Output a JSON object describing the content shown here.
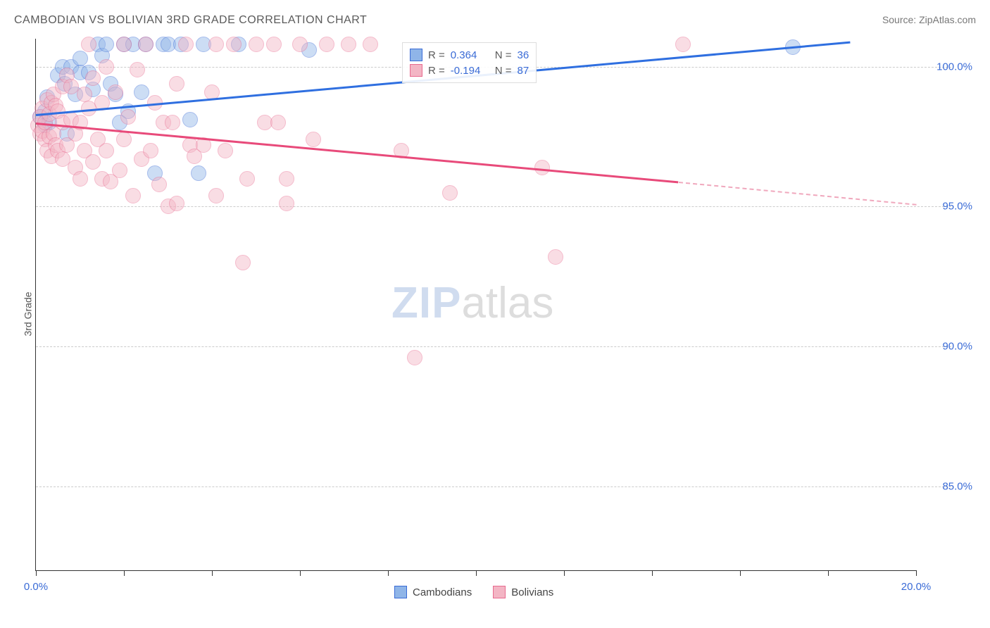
{
  "title": "CAMBODIAN VS BOLIVIAN 3RD GRADE CORRELATION CHART",
  "source": "Source: ZipAtlas.com",
  "ylabel": "3rd Grade",
  "watermark": {
    "zip": "ZIP",
    "atlas": "atlas"
  },
  "chart": {
    "type": "scatter",
    "xlim": [
      0.0,
      20.0
    ],
    "ylim": [
      82.0,
      101.0
    ],
    "ytick_values": [
      85.0,
      90.0,
      95.0,
      100.0
    ],
    "ytick_labels": [
      "85.0%",
      "90.0%",
      "95.0%",
      "100.0%"
    ],
    "xtick_values": [
      0,
      2,
      4,
      6,
      8,
      10,
      12,
      14,
      16,
      18,
      20
    ],
    "xtick_labels": {
      "0": "0.0%",
      "20": "20.0%"
    },
    "grid_color": "#cccccc",
    "background_color": "#ffffff",
    "point_radius": 10,
    "point_opacity": 0.45,
    "series": [
      {
        "name": "Cambodians",
        "color_fill": "#8fb5e8",
        "color_stroke": "#3a6bd6",
        "R": "0.364",
        "N": "36",
        "trend": {
          "x1": 0.0,
          "y1": 98.3,
          "x2": 18.5,
          "y2": 100.9,
          "color": "#2f6fe0"
        },
        "points": [
          [
            0.1,
            98.2
          ],
          [
            0.2,
            97.9
          ],
          [
            0.2,
            98.4
          ],
          [
            0.25,
            98.9
          ],
          [
            0.3,
            98.0
          ],
          [
            0.5,
            99.7
          ],
          [
            0.6,
            100.0
          ],
          [
            0.65,
            99.4
          ],
          [
            0.7,
            97.6
          ],
          [
            0.8,
            100.0
          ],
          [
            0.9,
            99.0
          ],
          [
            1.0,
            100.3
          ],
          [
            1.0,
            99.8
          ],
          [
            1.2,
            99.8
          ],
          [
            1.3,
            99.2
          ],
          [
            1.4,
            100.8
          ],
          [
            1.5,
            100.4
          ],
          [
            1.6,
            100.8
          ],
          [
            1.7,
            99.4
          ],
          [
            1.8,
            99.0
          ],
          [
            1.9,
            98.0
          ],
          [
            2.0,
            100.8
          ],
          [
            2.1,
            98.4
          ],
          [
            2.2,
            100.8
          ],
          [
            2.4,
            99.1
          ],
          [
            2.5,
            100.8
          ],
          [
            2.7,
            96.2
          ],
          [
            2.9,
            100.8
          ],
          [
            3.0,
            100.8
          ],
          [
            3.3,
            100.8
          ],
          [
            3.5,
            98.1
          ],
          [
            3.7,
            96.2
          ],
          [
            3.8,
            100.8
          ],
          [
            4.6,
            100.8
          ],
          [
            6.2,
            100.6
          ],
          [
            17.2,
            100.7
          ]
        ]
      },
      {
        "name": "Bolivians",
        "color_fill": "#f3b5c4",
        "color_stroke": "#e86a8f",
        "R": "-0.194",
        "N": "87",
        "trend": {
          "x1": 0.0,
          "y1": 98.0,
          "x2": 14.6,
          "y2": 95.9,
          "color": "#e84a7a"
        },
        "trend_dash": {
          "x1": 14.6,
          "y1": 95.9,
          "x2": 20.0,
          "y2": 95.1,
          "color": "#f0a8bd"
        },
        "points": [
          [
            0.05,
            97.9
          ],
          [
            0.1,
            97.6
          ],
          [
            0.1,
            98.2
          ],
          [
            0.15,
            98.5
          ],
          [
            0.15,
            97.7
          ],
          [
            0.2,
            97.4
          ],
          [
            0.2,
            98.0
          ],
          [
            0.25,
            98.8
          ],
          [
            0.25,
            97.0
          ],
          [
            0.3,
            97.5
          ],
          [
            0.3,
            98.3
          ],
          [
            0.35,
            98.7
          ],
          [
            0.35,
            96.8
          ],
          [
            0.4,
            99.0
          ],
          [
            0.4,
            97.6
          ],
          [
            0.45,
            98.6
          ],
          [
            0.45,
            97.2
          ],
          [
            0.5,
            97.0
          ],
          [
            0.5,
            98.4
          ],
          [
            0.6,
            99.3
          ],
          [
            0.6,
            98.0
          ],
          [
            0.6,
            96.7
          ],
          [
            0.7,
            97.2
          ],
          [
            0.7,
            99.7
          ],
          [
            0.8,
            98.1
          ],
          [
            0.8,
            99.3
          ],
          [
            0.9,
            96.4
          ],
          [
            0.9,
            97.6
          ],
          [
            1.0,
            98.0
          ],
          [
            1.0,
            96.0
          ],
          [
            1.1,
            97.0
          ],
          [
            1.1,
            99.0
          ],
          [
            1.2,
            100.8
          ],
          [
            1.2,
            98.5
          ],
          [
            1.3,
            96.6
          ],
          [
            1.3,
            99.6
          ],
          [
            1.4,
            97.4
          ],
          [
            1.5,
            96.0
          ],
          [
            1.5,
            98.7
          ],
          [
            1.6,
            100.0
          ],
          [
            1.6,
            97.0
          ],
          [
            1.7,
            95.9
          ],
          [
            1.8,
            99.1
          ],
          [
            1.9,
            96.3
          ],
          [
            2.0,
            97.4
          ],
          [
            2.0,
            100.8
          ],
          [
            2.1,
            98.2
          ],
          [
            2.2,
            95.4
          ],
          [
            2.3,
            99.9
          ],
          [
            2.4,
            96.7
          ],
          [
            2.5,
            100.8
          ],
          [
            2.6,
            97.0
          ],
          [
            2.7,
            98.7
          ],
          [
            2.8,
            95.8
          ],
          [
            2.9,
            98.0
          ],
          [
            3.0,
            95.0
          ],
          [
            3.1,
            98.0
          ],
          [
            3.2,
            95.1
          ],
          [
            3.2,
            99.4
          ],
          [
            3.4,
            100.8
          ],
          [
            3.5,
            97.2
          ],
          [
            3.6,
            96.8
          ],
          [
            3.8,
            97.2
          ],
          [
            4.0,
            99.1
          ],
          [
            4.1,
            95.4
          ],
          [
            4.1,
            100.8
          ],
          [
            4.3,
            97.0
          ],
          [
            4.5,
            100.8
          ],
          [
            4.7,
            93.0
          ],
          [
            4.8,
            96.0
          ],
          [
            5.0,
            100.8
          ],
          [
            5.2,
            98.0
          ],
          [
            5.4,
            100.8
          ],
          [
            5.5,
            98.0
          ],
          [
            5.7,
            96.0
          ],
          [
            5.7,
            95.1
          ],
          [
            6.0,
            100.8
          ],
          [
            6.3,
            97.4
          ],
          [
            6.6,
            100.8
          ],
          [
            7.1,
            100.8
          ],
          [
            7.6,
            100.8
          ],
          [
            8.3,
            97.0
          ],
          [
            8.6,
            89.6
          ],
          [
            9.4,
            95.5
          ],
          [
            11.5,
            96.4
          ],
          [
            11.8,
            93.2
          ],
          [
            14.7,
            100.8
          ]
        ]
      }
    ]
  },
  "legend_top": {
    "R_label": "R =",
    "N_label": "N ="
  },
  "legend_bottom": [
    {
      "label": "Cambodians",
      "fill": "#8fb5e8",
      "stroke": "#3a6bd6"
    },
    {
      "label": "Bolivians",
      "fill": "#f3b5c4",
      "stroke": "#e86a8f"
    }
  ]
}
